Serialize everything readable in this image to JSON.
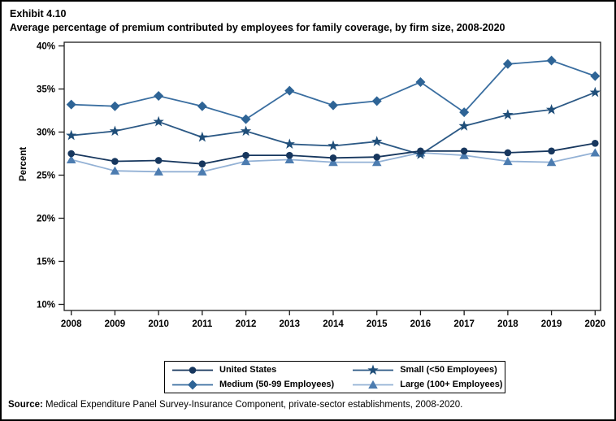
{
  "page": {
    "exhibit_label": "Exhibit 4.10",
    "source_label": "Source:",
    "source_text": " Medical Expenditure Panel Survey-Insurance Component, private-sector establishments, 2008-2020."
  },
  "chart_data": {
    "type": "line",
    "title": "Average percentage of premium contributed by employees for family coverage, by firm size, 2008-2020",
    "xlabel": "",
    "ylabel": "Percent",
    "categories": [
      "2008",
      "2009",
      "2010",
      "2011",
      "2012",
      "2013",
      "2014",
      "2015",
      "2016",
      "2017",
      "2018",
      "2019",
      "2020"
    ],
    "y_ticks": [
      40,
      35,
      30,
      25,
      20,
      15,
      10
    ],
    "y_tick_suffix": "%",
    "ylim": [
      10,
      40
    ],
    "grid": false,
    "legend_position": "bottom",
    "series": [
      {
        "name": "United States",
        "marker": "circle",
        "color": "#17375E",
        "line_color": "#17375E",
        "values": [
          27.5,
          26.6,
          26.7,
          26.3,
          27.3,
          27.3,
          27.0,
          27.1,
          27.8,
          27.8,
          27.6,
          27.8,
          28.7
        ]
      },
      {
        "name": "Small (<50 Employees)",
        "marker": "star",
        "color": "#1F4E79",
        "line_color": "#2C5985",
        "values": [
          29.6,
          30.1,
          31.2,
          29.4,
          30.1,
          28.6,
          28.4,
          28.9,
          27.4,
          30.7,
          32.0,
          32.6,
          34.6
        ]
      },
      {
        "name": "Medium (50-99 Employees)",
        "marker": "diamond",
        "color": "#2E6496",
        "line_color": "#3A6EA0",
        "values": [
          33.2,
          33.0,
          34.2,
          33.0,
          31.5,
          34.8,
          33.1,
          33.6,
          35.8,
          32.3,
          37.9,
          38.3,
          36.5
        ]
      },
      {
        "name": "Large (100+ Employees)",
        "marker": "triangle",
        "color": "#4C7CB0",
        "line_color": "#93B1D5",
        "values": [
          26.8,
          25.5,
          25.4,
          25.4,
          26.6,
          26.8,
          26.5,
          26.5,
          27.6,
          27.3,
          26.6,
          26.5,
          27.6
        ]
      }
    ]
  }
}
